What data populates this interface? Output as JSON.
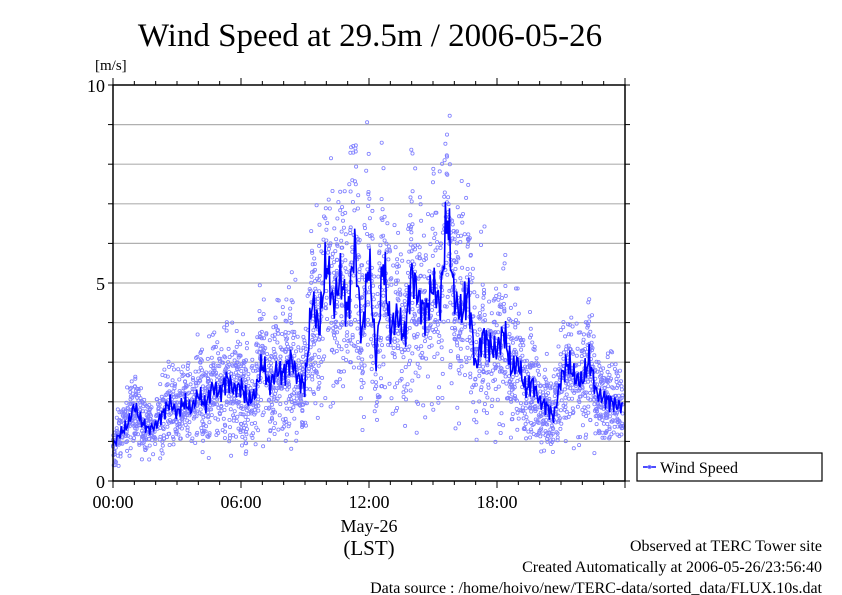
{
  "chart_data": {
    "type": "line",
    "title": "Wind Speed at 29.5m / 2006-05-26",
    "ylabel": "[m/s]",
    "xlabel": "May-26",
    "xlabel2": "(LST)",
    "ylim": [
      0,
      10
    ],
    "xlim_hours": [
      0,
      24
    ],
    "grid": true,
    "y_ticks": [
      0,
      5,
      10
    ],
    "y_tick_labels": [
      "0",
      "5",
      "10"
    ],
    "x_ticks_hours": [
      0,
      6,
      12,
      18
    ],
    "x_tick_labels": [
      "00:00",
      "06:00",
      "12:00",
      "18:00"
    ],
    "legend": {
      "placement": "bottom-right-outside",
      "entries": [
        "Wind Speed"
      ]
    },
    "series": [
      {
        "name": "Wind Speed",
        "style": "line+scatter",
        "color": "#0000ff",
        "scatter_color": "#7f7fff",
        "x_step_hours": 0.3333,
        "values": [
          0.9,
          1.2,
          1.4,
          1.9,
          1.5,
          1.3,
          1.4,
          1.7,
          2.0,
          1.7,
          2.0,
          1.8,
          2.2,
          1.9,
          2.4,
          2.2,
          2.6,
          2.3,
          2.4,
          2.0,
          2.2,
          3.0,
          2.4,
          2.8,
          2.7,
          3.1,
          2.6,
          2.4,
          4.6,
          3.8,
          5.6,
          4.4,
          5.2,
          4.2,
          6.0,
          3.6,
          5.6,
          3.0,
          5.6,
          3.8,
          4.2,
          3.6,
          5.3,
          4.6,
          4.2,
          5.0,
          4.4,
          6.8,
          4.6,
          4.2,
          4.8,
          2.8,
          3.7,
          3.4,
          3.3,
          3.8,
          2.8,
          3.0,
          2.3,
          2.5,
          2.0,
          1.9,
          1.6,
          2.6,
          3.0,
          2.6,
          2.5,
          3.1,
          2.2,
          2.1,
          2.0,
          1.9,
          1.9
        ]
      }
    ]
  },
  "footer": {
    "line1": "Observed at TERC Tower site",
    "line2": "Created Automatically at 2006-05-26/23:56:40",
    "line3": "Data source : /home/hoivo/new/TERC-data/sorted_data/FLUX.10s.dat"
  }
}
